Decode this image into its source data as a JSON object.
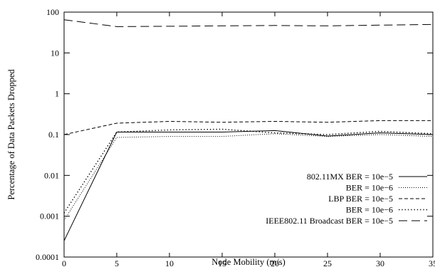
{
  "chart_data": {
    "type": "line",
    "title": "",
    "xlabel": "Node Mobility (m/s)",
    "ylabel": "Percentage of Data Packets Dropped",
    "xlim": [
      0,
      35
    ],
    "ylim": [
      0.0001,
      100
    ],
    "yscale": "log",
    "grid": false,
    "legend_position": "bottom-right",
    "x_ticks": [
      0,
      5,
      10,
      15,
      20,
      25,
      30,
      35
    ],
    "x_tick_labels": [
      "0",
      "5",
      "10",
      "15",
      "20",
      "25",
      "30",
      "35"
    ],
    "y_ticks": [
      0.0001,
      0.001,
      0.01,
      0.1,
      1,
      10,
      100
    ],
    "y_tick_labels": [
      "0.0001",
      "0.001",
      "0.01",
      "0.1",
      "1",
      "10",
      "100"
    ],
    "x": [
      0,
      5,
      10,
      15,
      20,
      25,
      30,
      35
    ],
    "series": [
      {
        "name": "802.11MX BER = 10e−5",
        "style": "solid",
        "values": [
          0.00025,
          0.115,
          0.115,
          0.115,
          0.125,
          0.092,
          0.11,
          0.1
        ]
      },
      {
        "name": "BER = 10e−6",
        "style": "dotted-fine",
        "values": [
          0.0008,
          0.085,
          0.09,
          0.09,
          0.105,
          0.09,
          0.1,
          0.09
        ]
      },
      {
        "name": "LBP BER = 10e−5",
        "style": "dashed-short",
        "values": [
          0.1,
          0.19,
          0.21,
          0.2,
          0.21,
          0.2,
          0.22,
          0.22
        ]
      },
      {
        "name": "BER = 10e−6",
        "style": "dotted",
        "values": [
          0.0012,
          0.115,
          0.13,
          0.135,
          0.11,
          0.1,
          0.12,
          0.105
        ]
      },
      {
        "name": "IEEE802.11 Broadcast BER = 10e−5",
        "style": "dashed-long",
        "values": [
          65,
          44,
          45,
          46,
          47,
          46,
          48,
          50
        ]
      }
    ]
  }
}
